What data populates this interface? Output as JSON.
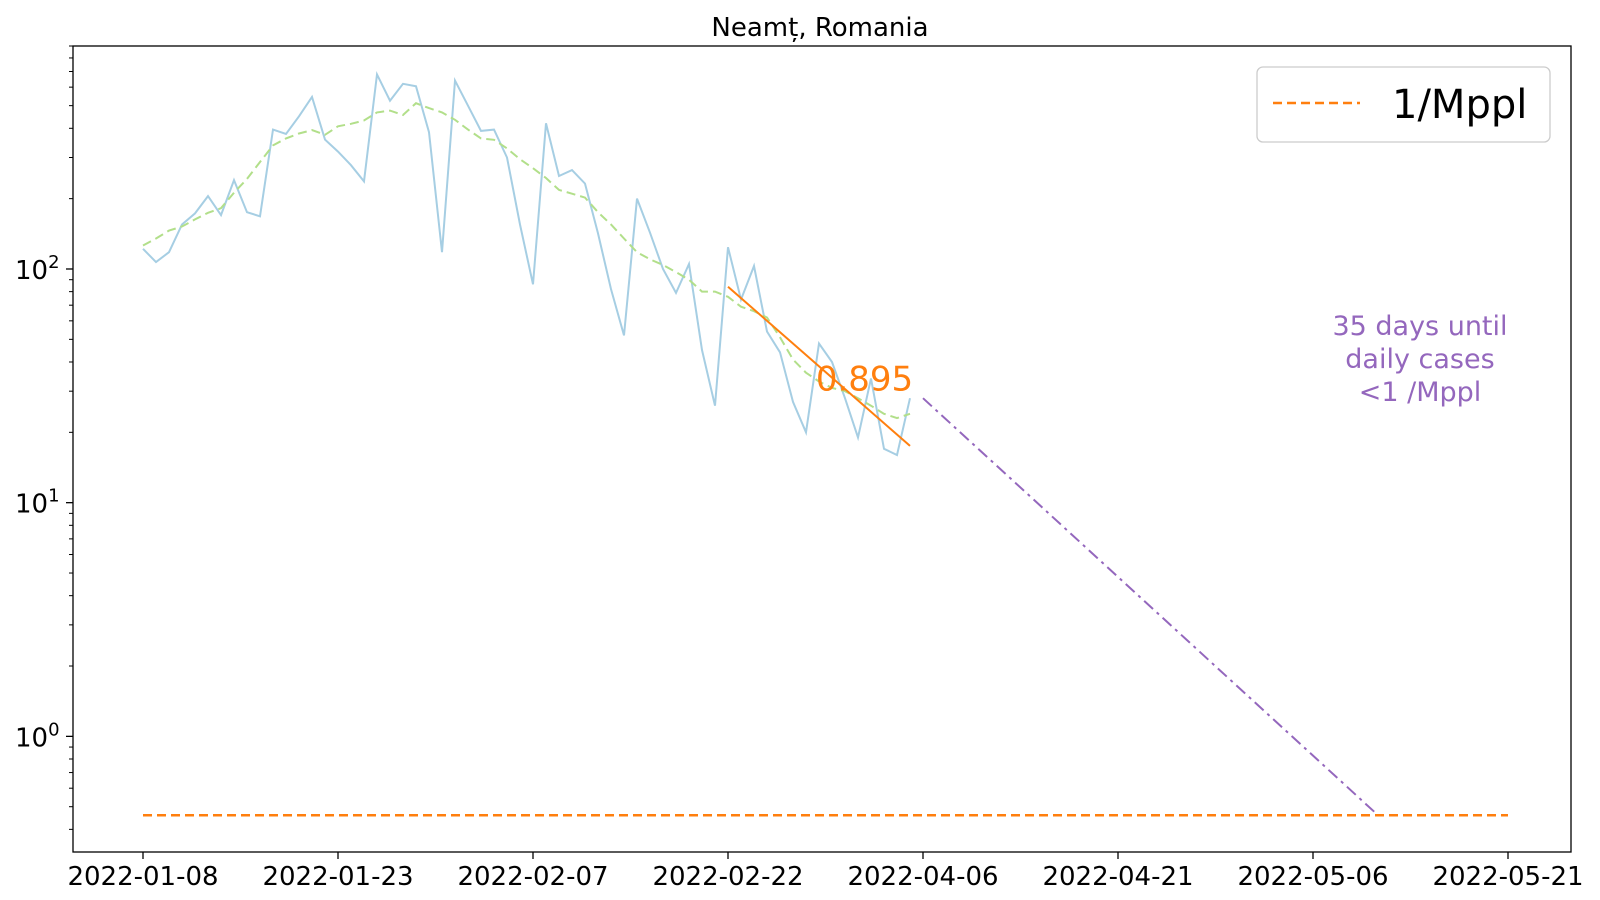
{
  "chart_data": {
    "type": "line",
    "title": "Neamț, Romania",
    "xlabel": "",
    "ylabel": "",
    "yscale": "log",
    "ylim": [
      0.32,
      900
    ],
    "x_ticks": [
      "2022-01-08",
      "2022-01-23",
      "2022-02-07",
      "2022-02-22",
      "2022-04-06",
      "2022-04-21",
      "2022-05-06",
      "2022-05-21"
    ],
    "y_ticks": [
      {
        "value": 100,
        "base": "10",
        "exp": "2"
      },
      {
        "value": 10,
        "base": "10",
        "exp": "1"
      },
      {
        "value": 1,
        "base": "10",
        "exp": "0"
      }
    ],
    "legend": {
      "position": "top-right",
      "entries": [
        {
          "label": "1/Mppl",
          "color": "#ff7f0e",
          "style": "dashed"
        }
      ]
    },
    "grid": false,
    "series": [
      {
        "color": "#a6cee3",
        "style": "solid",
        "points": [
          [
            0,
            122
          ],
          [
            1,
            107
          ],
          [
            2,
            118
          ],
          [
            3,
            155
          ],
          [
            4,
            173
          ],
          [
            5,
            205
          ],
          [
            6,
            170
          ],
          [
            7,
            240
          ],
          [
            8,
            175
          ],
          [
            9,
            168
          ],
          [
            10,
            395
          ],
          [
            11,
            378
          ],
          [
            12,
            450
          ],
          [
            13,
            545
          ],
          [
            14,
            358
          ],
          [
            15,
            318
          ],
          [
            16,
            278
          ],
          [
            17,
            237
          ],
          [
            18,
            680
          ],
          [
            19,
            525
          ],
          [
            20,
            620
          ],
          [
            21,
            605
          ],
          [
            22,
            385
          ],
          [
            23,
            118
          ],
          [
            24,
            640
          ],
          [
            25,
            500
          ],
          [
            26,
            390
          ],
          [
            27,
            395
          ],
          [
            28,
            300
          ],
          [
            29,
            155
          ],
          [
            30,
            86
          ],
          [
            31,
            420
          ],
          [
            32,
            250
          ],
          [
            33,
            265
          ],
          [
            34,
            232
          ],
          [
            35,
            142
          ],
          [
            36,
            82
          ],
          [
            37,
            52
          ],
          [
            38,
            200
          ],
          [
            39,
            143
          ],
          [
            40,
            100
          ],
          [
            41,
            79
          ],
          [
            42,
            105
          ],
          [
            43,
            45
          ],
          [
            44,
            26
          ],
          [
            45,
            124
          ],
          [
            46,
            74
          ],
          [
            47,
            103
          ],
          [
            48,
            54
          ],
          [
            49,
            44
          ],
          [
            50,
            27
          ],
          [
            51,
            20
          ],
          [
            52,
            48
          ],
          [
            53,
            40
          ],
          [
            54,
            28
          ],
          [
            55,
            19
          ],
          [
            56,
            34
          ],
          [
            57,
            17
          ],
          [
            58,
            16
          ],
          [
            59,
            28
          ]
        ]
      },
      {
        "color": "#b2df8a",
        "style": "dashed",
        "points": [
          [
            0,
            126
          ],
          [
            1,
            135
          ],
          [
            2,
            146
          ],
          [
            3,
            152
          ],
          [
            4,
            163
          ],
          [
            5,
            174
          ],
          [
            6,
            182
          ],
          [
            7,
            212
          ],
          [
            8,
            243
          ],
          [
            9,
            287
          ],
          [
            10,
            338
          ],
          [
            11,
            362
          ],
          [
            12,
            380
          ],
          [
            13,
            393
          ],
          [
            14,
            375
          ],
          [
            15,
            408
          ],
          [
            16,
            418
          ],
          [
            17,
            432
          ],
          [
            18,
            468
          ],
          [
            19,
            476
          ],
          [
            20,
            456
          ],
          [
            21,
            512
          ],
          [
            22,
            488
          ],
          [
            23,
            468
          ],
          [
            24,
            435
          ],
          [
            25,
            395
          ],
          [
            26,
            362
          ],
          [
            27,
            357
          ],
          [
            28,
            328
          ],
          [
            29,
            295
          ],
          [
            30,
            270
          ],
          [
            31,
            245
          ],
          [
            32,
            218
          ],
          [
            33,
            210
          ],
          [
            34,
            202
          ],
          [
            35,
            175
          ],
          [
            36,
            155
          ],
          [
            37,
            135
          ],
          [
            38,
            118
          ],
          [
            39,
            110
          ],
          [
            40,
            104
          ],
          [
            41,
            97
          ],
          [
            42,
            90
          ],
          [
            43,
            80
          ],
          [
            44,
            80
          ],
          [
            45,
            76
          ],
          [
            46,
            69
          ],
          [
            47,
            66
          ],
          [
            48,
            62
          ],
          [
            49,
            51
          ],
          [
            50,
            41
          ],
          [
            51,
            36
          ],
          [
            52,
            33
          ],
          [
            53,
            31
          ],
          [
            54,
            30
          ],
          [
            55,
            28
          ],
          [
            56,
            26
          ],
          [
            57,
            24
          ],
          [
            58,
            23
          ],
          [
            59,
            24
          ]
        ]
      },
      {
        "color": "#ff7f0e",
        "style": "solid",
        "points": [
          [
            45,
            84
          ],
          [
            59,
            17.5
          ]
        ]
      },
      {
        "color": "#9467bd",
        "style": "dashdot",
        "points": [
          [
            60,
            28
          ],
          [
            95,
            0.46
          ]
        ]
      },
      {
        "name": "1/Mppl",
        "color": "#ff7f0e",
        "style": "dashed",
        "points": [
          [
            0,
            0.46
          ],
          [
            105,
            0.46
          ]
        ]
      }
    ],
    "annotations": [
      {
        "text": "0.895",
        "color": "#ff7f0e",
        "x": 55.5,
        "y": 34
      },
      {
        "lines": [
          "35 days until",
          "daily cases",
          "<1 /Mppl"
        ],
        "color": "#9467bd"
      }
    ]
  }
}
